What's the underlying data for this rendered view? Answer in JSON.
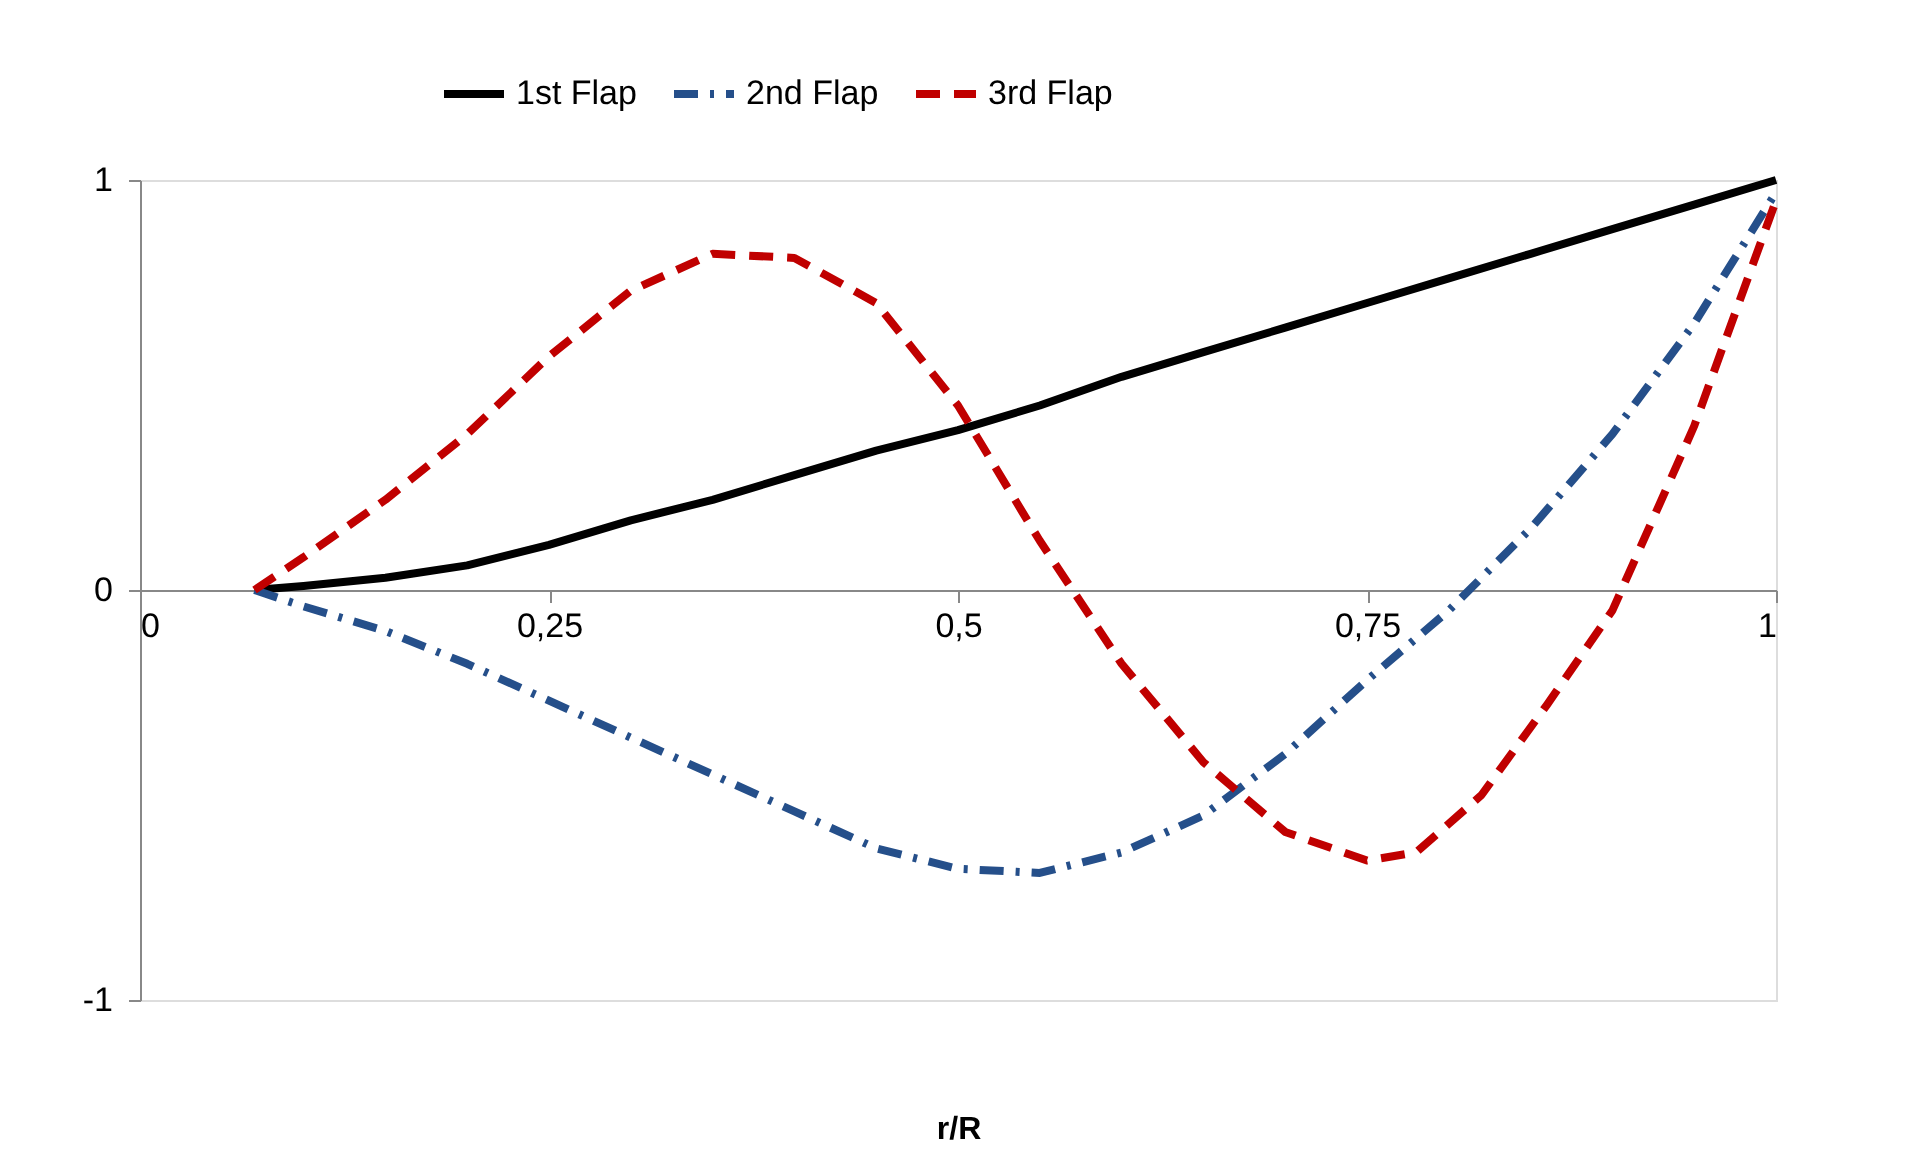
{
  "chart_data": {
    "type": "line",
    "xlabel": "r/R",
    "legend": "top",
    "grid": false,
    "marker": "none",
    "xlim": [
      0,
      1
    ],
    "ylim": [
      -1,
      1
    ],
    "xticks": [
      0,
      {
        "value": 0.25,
        "label": "0,25"
      },
      {
        "value": 0.5,
        "label": "0,5"
      },
      {
        "value": 0.75,
        "label": "0,75"
      },
      1
    ],
    "yticks": [
      -1,
      0,
      1
    ],
    "series": [
      {
        "name": "1st Flap",
        "color": "#000000",
        "line_style": "solid",
        "x": [
          0.07,
          0.1,
          0.15,
          0.2,
          0.25,
          0.3,
          0.35,
          0.4,
          0.45,
          0.5,
          0.55,
          0.6,
          0.65,
          0.7,
          0.75,
          0.8,
          0.85,
          0.9,
          0.95,
          1
        ],
        "values": [
          0,
          0.01,
          0.03,
          0.06,
          0.11,
          0.17,
          0.22,
          0.28,
          0.34,
          0.39,
          0.45,
          0.52,
          0.58,
          0.64,
          0.7,
          0.76,
          0.82,
          0.88,
          0.94,
          1
        ]
      },
      {
        "name": "2nd Flap",
        "color": "#254f8a",
        "line_style": "dashdot",
        "x": [
          0.07,
          0.1,
          0.15,
          0.2,
          0.25,
          0.3,
          0.35,
          0.4,
          0.45,
          0.5,
          0.55,
          0.6,
          0.65,
          0.7,
          0.75,
          0.8,
          0.85,
          0.9,
          0.95,
          1
        ],
        "values": [
          0,
          -0.04,
          -0.1,
          -0.18,
          -0.27,
          -0.36,
          -0.45,
          -0.54,
          -0.63,
          -0.68,
          -0.69,
          -0.64,
          -0.55,
          -0.4,
          -0.22,
          -0.05,
          0.15,
          0.38,
          0.65,
          0.97
        ]
      },
      {
        "name": "3rd Flap",
        "color": "#c00000",
        "line_style": "dashed",
        "x": [
          0.07,
          0.1,
          0.15,
          0.2,
          0.25,
          0.3,
          0.35,
          0.4,
          0.45,
          0.5,
          0.55,
          0.6,
          0.65,
          0.7,
          0.75,
          0.78,
          0.82,
          0.86,
          0.9,
          0.95,
          1
        ],
        "values": [
          0,
          0.08,
          0.22,
          0.38,
          0.57,
          0.73,
          0.82,
          0.81,
          0.7,
          0.45,
          0.12,
          -0.18,
          -0.42,
          -0.59,
          -0.66,
          -0.64,
          -0.5,
          -0.28,
          -0.05,
          0.4,
          0.95
        ]
      }
    ]
  }
}
